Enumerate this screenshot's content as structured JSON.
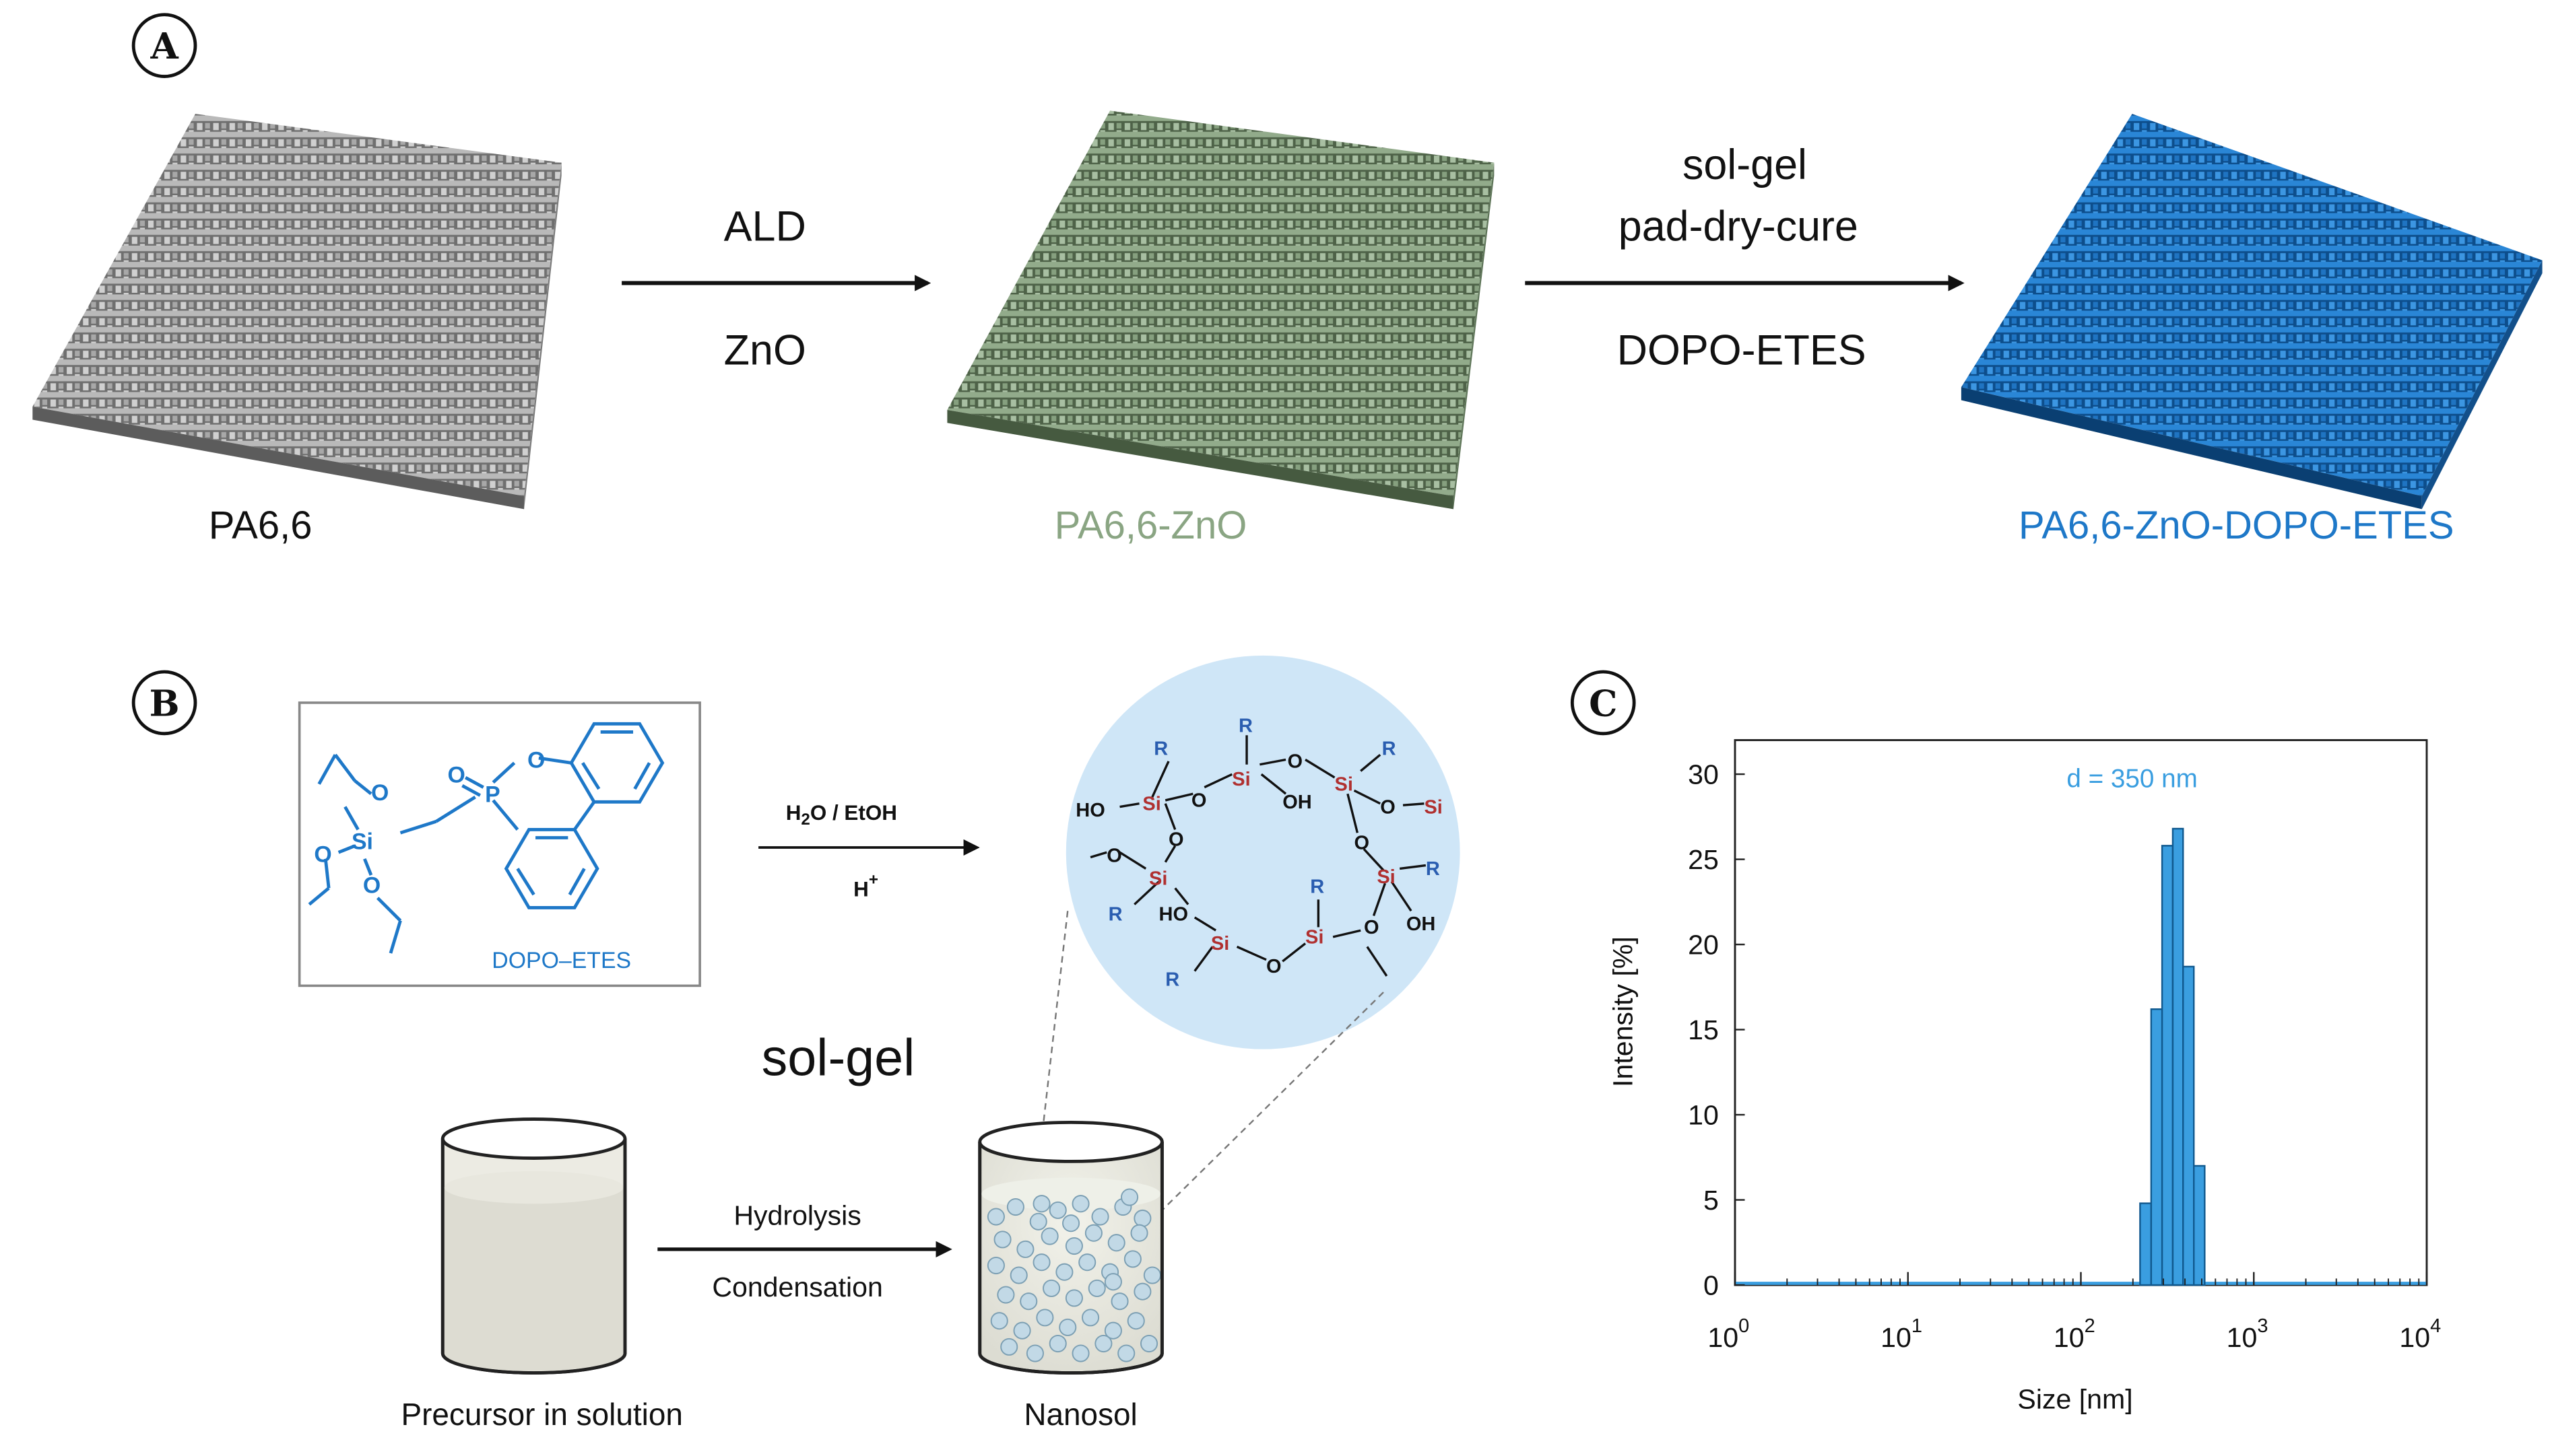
{
  "panel_a": {
    "letter": "A",
    "sample_1": "PA6,6",
    "sample_2": "PA6,6-ZnO",
    "sample_3": "PA6,6-ZnO-DOPO-ETES",
    "step_1_top": "ALD",
    "step_1_bottom": "ZnO",
    "step_2_top_1": "sol-gel",
    "step_2_top_2": "pad-dry-cure",
    "step_2_bottom": "DOPO-ETES",
    "colors": {
      "pa66": "#9c9c9c",
      "zno": "#8aa583",
      "dopo": "#1e78c8"
    }
  },
  "panel_b": {
    "letter": "B",
    "precursor_label": "DOPO–ETES",
    "atom_si": "Si",
    "atom_o": "O",
    "atom_p": "P",
    "reaction_cond_1": "H2O / EtOH",
    "reaction_cond_2": "H+",
    "sol_gel_title": "sol-gel",
    "process_top": "Hydrolysis",
    "process_bottom": "Condensation",
    "left_beaker_label": "Precursor in solution",
    "right_beaker_label": "Nanosol",
    "network_r": "R",
    "network_oh": "OH",
    "network_ho": "HO",
    "network_o": "O"
  },
  "panel_c": {
    "letter": "C",
    "chart_data": {
      "type": "bar",
      "xscale": "log",
      "xlabel": "Size [nm]",
      "ylabel": "Intensity [%]",
      "annotation": "d = 350 nm",
      "xlim": [
        1,
        10000
      ],
      "ylim": [
        0,
        32
      ],
      "yticks": [
        0,
        5,
        10,
        15,
        20,
        25,
        30
      ],
      "xticks": [
        {
          "base": "10",
          "exp": "0",
          "value": 1
        },
        {
          "base": "10",
          "exp": "1",
          "value": 10
        },
        {
          "base": "10",
          "exp": "2",
          "value": 100
        },
        {
          "base": "10",
          "exp": "3",
          "value": 1000
        },
        {
          "base": "10",
          "exp": "4",
          "value": 10000
        }
      ],
      "bins": [
        {
          "x0": 220,
          "x1": 255,
          "value": 4.8
        },
        {
          "x0": 255,
          "x1": 295,
          "value": 16.2
        },
        {
          "x0": 295,
          "x1": 340,
          "value": 25.8
        },
        {
          "x0": 340,
          "x1": 390,
          "value": 26.8
        },
        {
          "x0": 390,
          "x1": 450,
          "value": 18.7
        },
        {
          "x0": 450,
          "x1": 520,
          "value": 7.0
        }
      ],
      "baseline_value": 0.1,
      "color": "#3a9ee0"
    }
  }
}
